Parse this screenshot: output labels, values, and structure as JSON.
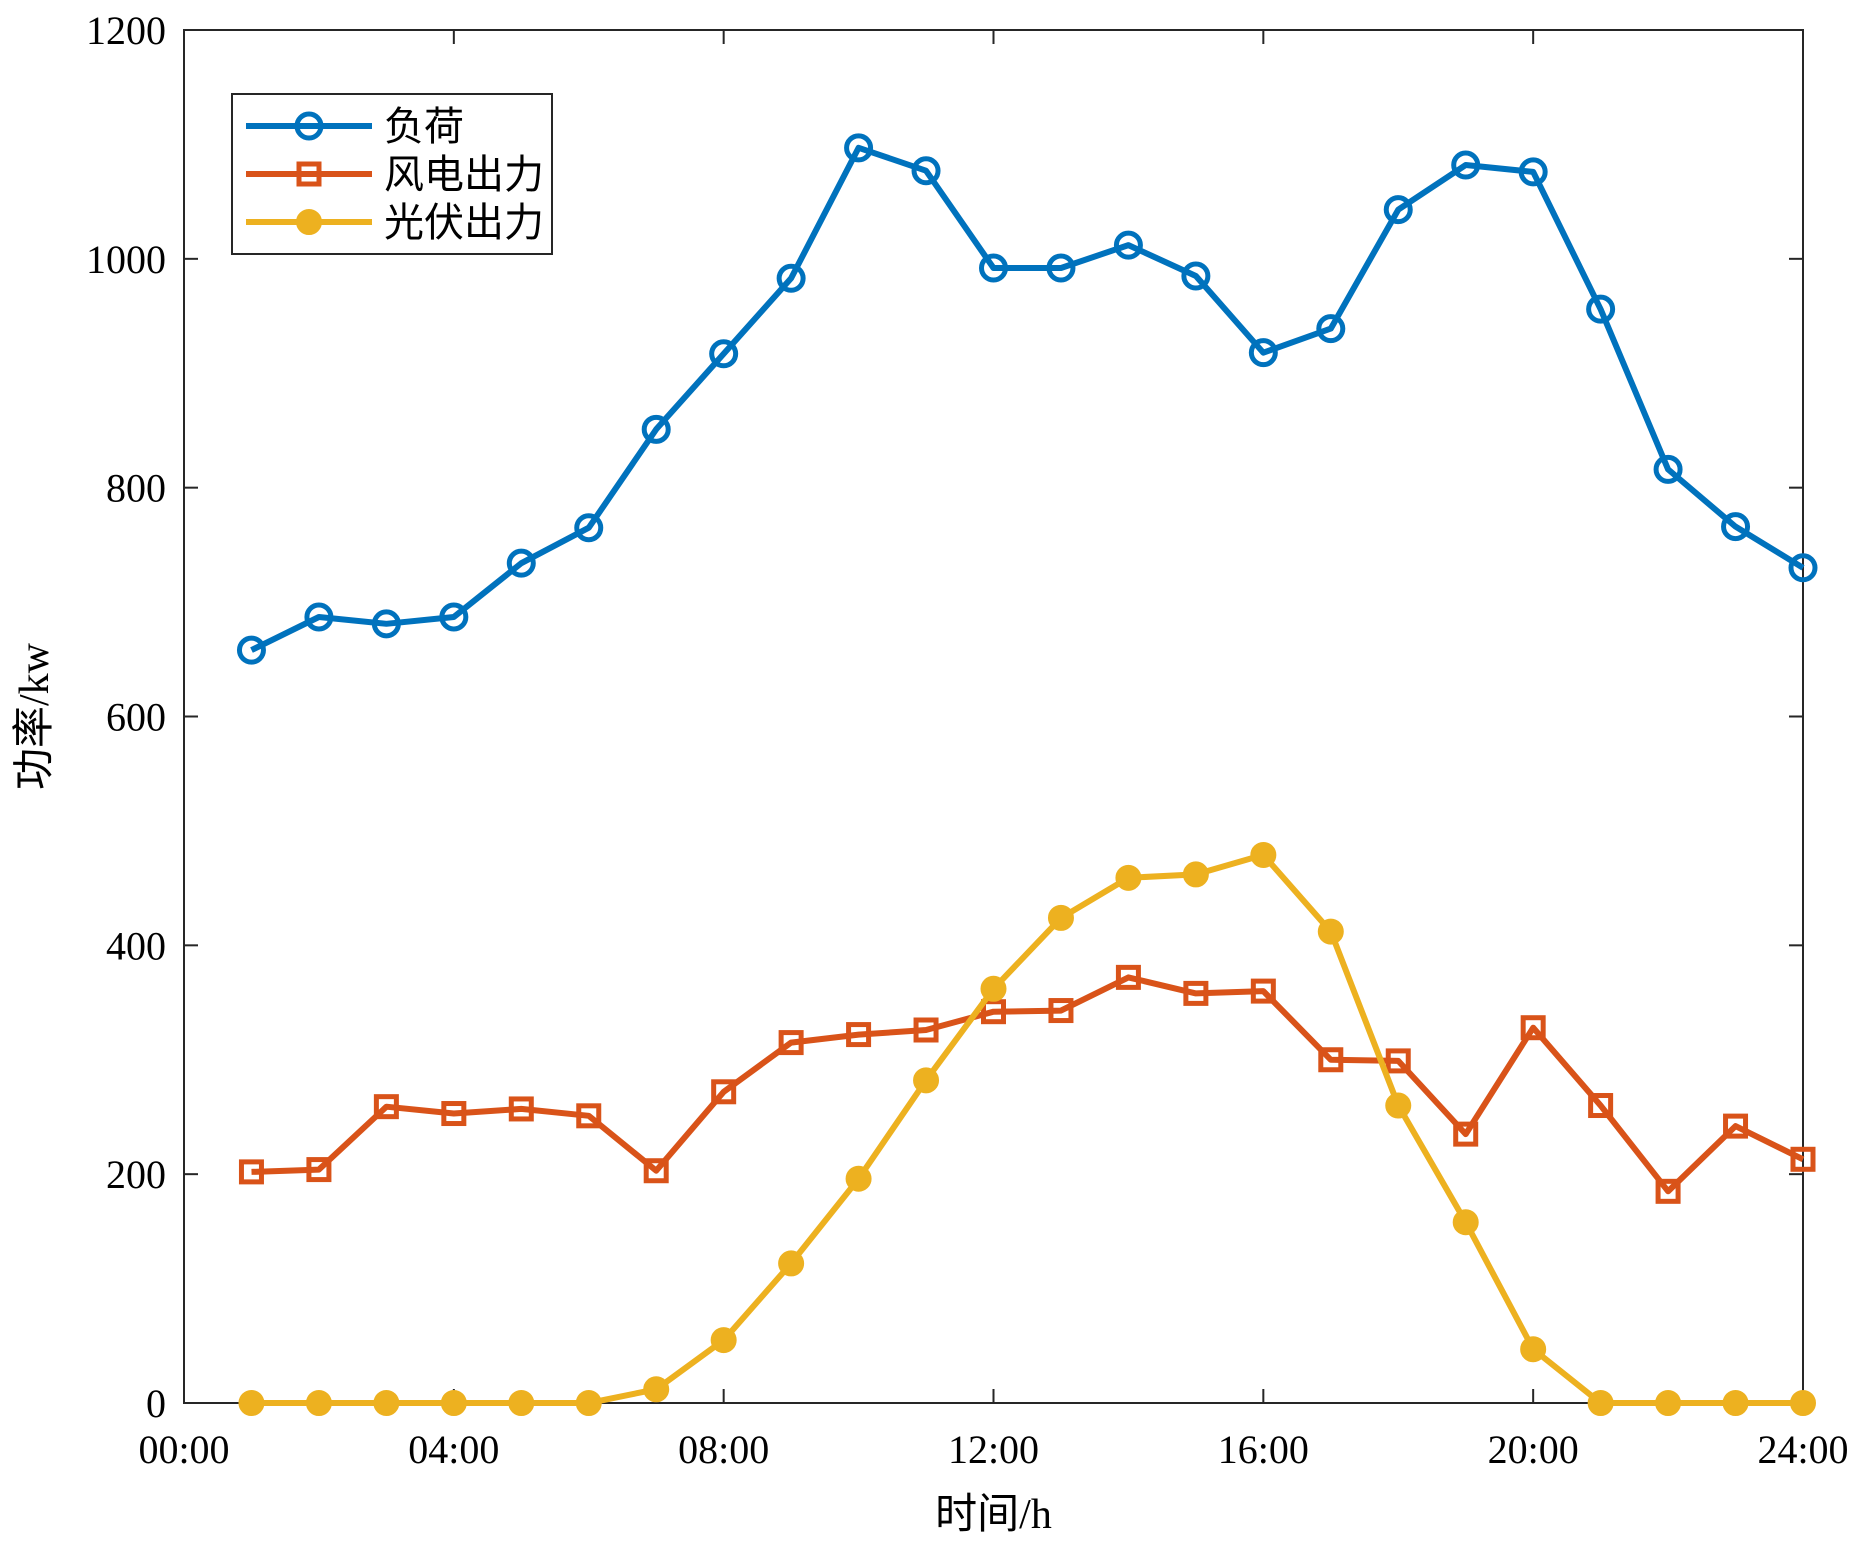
{
  "chart_data": {
    "type": "line",
    "title": "",
    "xlabel": "时间/h",
    "ylabel": "功率/kw",
    "xlim": [
      0,
      24
    ],
    "ylim": [
      0,
      1200
    ],
    "x_tick_labels": [
      "00:00",
      "04:00",
      "08:00",
      "12:00",
      "16:00",
      "20:00",
      "24:00"
    ],
    "x_tick_values": [
      0,
      4,
      8,
      12,
      16,
      20,
      24
    ],
    "y_tick_labels": [
      "0",
      "200",
      "400",
      "600",
      "800",
      "1000",
      "1200"
    ],
    "y_tick_values": [
      0,
      200,
      400,
      600,
      800,
      1000,
      1200
    ],
    "grid": false,
    "legend_position": "top-left",
    "x": [
      1,
      2,
      3,
      4,
      5,
      6,
      7,
      8,
      9,
      10,
      11,
      12,
      13,
      14,
      15,
      16,
      17,
      18,
      19,
      20,
      21,
      22,
      23,
      24
    ],
    "series": [
      {
        "name": "负荷",
        "color": "#0072BD",
        "marker": "open-circle",
        "values": [
          658,
          687,
          681,
          687,
          734,
          765,
          851,
          917,
          983,
          1097,
          1077,
          992,
          992,
          1012,
          985,
          918,
          939,
          1043,
          1082,
          1076,
          956,
          816,
          766,
          730
        ]
      },
      {
        "name": "风电出力",
        "color": "#D95319",
        "marker": "square",
        "values": [
          202,
          204,
          259,
          253,
          257,
          251,
          203,
          272,
          315,
          322,
          326,
          342,
          343,
          372,
          358,
          360,
          300,
          299,
          235,
          328,
          260,
          185,
          242,
          213
        ]
      },
      {
        "name": "光伏出力",
        "color": "#EDB120",
        "marker": "filled-circle",
        "values": [
          0,
          0,
          0,
          0,
          0,
          0,
          12,
          55,
          122,
          196,
          282,
          362,
          424,
          459,
          462,
          479,
          412,
          260,
          158,
          47,
          0,
          0,
          0,
          0
        ]
      }
    ]
  }
}
